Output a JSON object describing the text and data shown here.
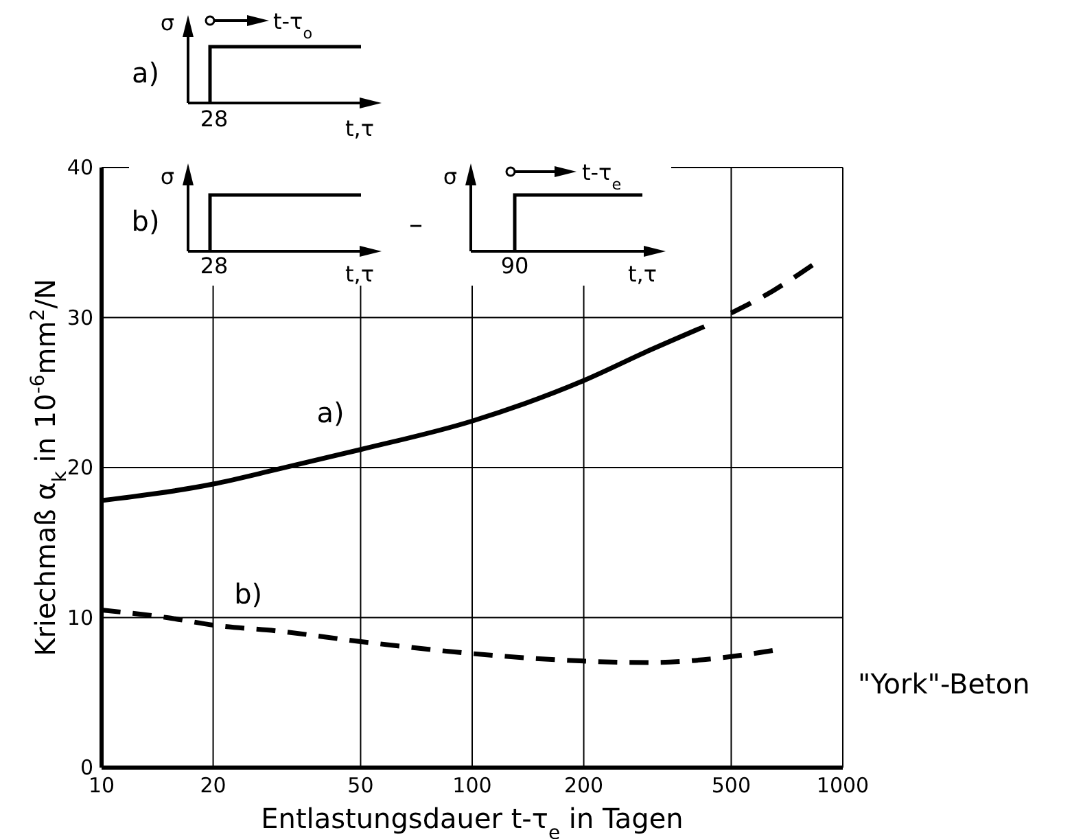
{
  "chart_data": {
    "type": "line",
    "xlabel": "Entlastungsdauer  t-τ$_{e}$ in Tagen",
    "ylabel": "Kriechmaß α$_{k}$ in 10$^{-6}$mm$^{2}$/N",
    "log": "x",
    "xlim": [
      10,
      1000
    ],
    "ylim": [
      0,
      40
    ],
    "xticks": [
      10,
      20,
      50,
      100,
      200,
      500,
      1000
    ],
    "yticks": [
      0,
      10,
      20,
      30,
      40
    ],
    "grid": true,
    "marker": "none",
    "series": [
      {
        "name": "a)",
        "color": "#000000",
        "line_style": "solid",
        "x": [
          10,
          20,
          30,
          50,
          100,
          200,
          300,
          423
        ],
        "values": [
          17.8,
          18.9,
          19.9,
          21.2,
          23.1,
          25.8,
          27.8,
          29.4
        ]
      },
      {
        "color": "#000000",
        "line_style": "dashed",
        "x": [
          500,
          650,
          828
        ],
        "values": [
          30.3,
          31.8,
          33.5
        ]
      },
      {
        "name": "b)",
        "color": "#000000",
        "line_style": "dashed",
        "x": [
          10,
          15,
          20,
          30,
          50,
          100,
          200,
          300,
          500,
          647
        ],
        "values": [
          10.5,
          10.0,
          9.5,
          9.1,
          8.4,
          7.6,
          7.1,
          7.0,
          7.4,
          7.8
        ]
      }
    ],
    "annotations": [
      "\"York\"-Beton",
      "σ",
      "t-τ$_{o}$",
      "a)",
      "28",
      "t,τ",
      "σ",
      "b)",
      "28",
      "t,τ",
      "–",
      "σ",
      "t-τ$_{e}$",
      "90",
      "t,τ"
    ]
  }
}
